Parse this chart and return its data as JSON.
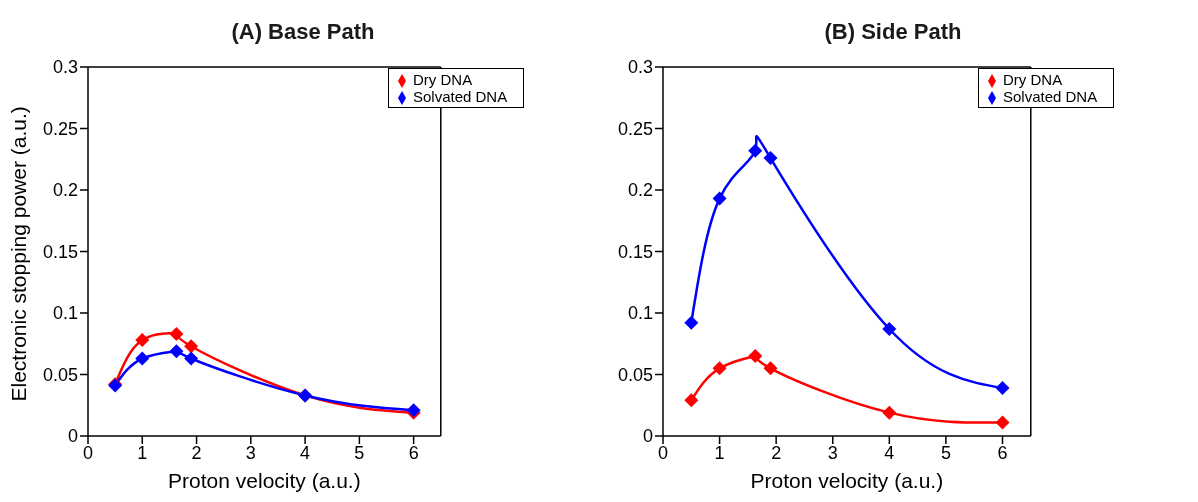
{
  "chart_data": [
    {
      "type": "line",
      "title": "(A) Base Path",
      "xlabel": "Proton velocity (a.u.)",
      "ylabel": "Electronic stopping power (a.u.)",
      "xlim": [
        0,
        6.5
      ],
      "xticks": [
        0,
        1,
        2,
        3,
        4,
        5,
        6
      ],
      "ylim": [
        0,
        0.3
      ],
      "yticks": [
        0,
        0.05,
        0.1,
        0.15,
        0.2,
        0.25,
        0.3
      ],
      "legend": "top right",
      "marker": "diamond",
      "line_style": "solid",
      "grid": false,
      "x": [
        0.5,
        1,
        1.63,
        1.9,
        4,
        6
      ],
      "series": [
        {
          "name": "Dry DNA",
          "color": "#ff0000",
          "values": [
            0.042,
            0.078,
            0.083,
            0.073,
            0.033,
            0.019
          ]
        },
        {
          "name": "Solvated DNA",
          "color": "#0000ff",
          "values": [
            0.041,
            0.063,
            0.069,
            0.063,
            0.033,
            0.021
          ]
        }
      ]
    },
    {
      "type": "line",
      "title": "(B) Side Path",
      "xlabel": "Proton velocity (a.u.)",
      "xlim": [
        0,
        6.5
      ],
      "xticks": [
        0,
        1,
        2,
        3,
        4,
        5,
        6
      ],
      "ylim": [
        0,
        0.3
      ],
      "yticks": [
        0,
        0.05,
        0.1,
        0.15,
        0.2,
        0.25,
        0.3
      ],
      "legend": "top right",
      "marker": "diamond",
      "line_style": "solid",
      "grid": false,
      "x": [
        0.5,
        1,
        1.63,
        1.9,
        4,
        6
      ],
      "series": [
        {
          "name": "Dry DNA",
          "color": "#ff0000",
          "values": [
            0.029,
            0.055,
            0.065,
            0.055,
            0.019,
            0.011
          ]
        },
        {
          "name": "Solvated DNA",
          "color": "#0000ff",
          "values": [
            0.092,
            0.193,
            0.232,
            0.226,
            0.087,
            0.039
          ]
        }
      ]
    }
  ]
}
